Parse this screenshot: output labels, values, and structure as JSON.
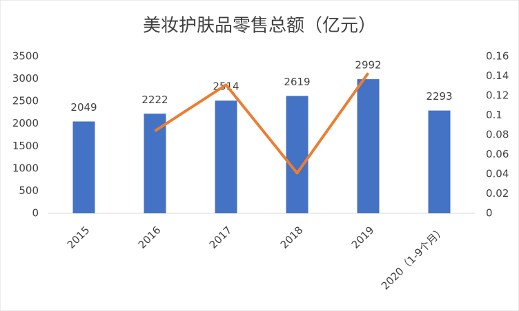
{
  "chart_data": {
    "type": "bar",
    "title": "美妆护肤品零售总额（亿元）",
    "categories": [
      "2015",
      "2016",
      "2017",
      "2018",
      "2019",
      "2020（1-9个月）"
    ],
    "series": [
      {
        "type": "bar",
        "color": "#4472c4",
        "values": [
          2049,
          2222,
          2514,
          2619,
          2992,
          2293
        ]
      },
      {
        "type": "line",
        "axis": "y2",
        "color": "#ed7d31",
        "values": [
          null,
          0.084,
          0.131,
          0.041,
          0.143,
          null
        ]
      }
    ],
    "ylim": [
      0,
      3500
    ],
    "yticks": [
      0,
      500,
      1000,
      1500,
      2000,
      2500,
      3000,
      3500
    ],
    "y2lim": [
      0,
      0.16
    ],
    "y2ticks": [
      0,
      0.02,
      0.04,
      0.06,
      0.08,
      0.1,
      0.12,
      0.14,
      0.16
    ],
    "grid": false
  }
}
